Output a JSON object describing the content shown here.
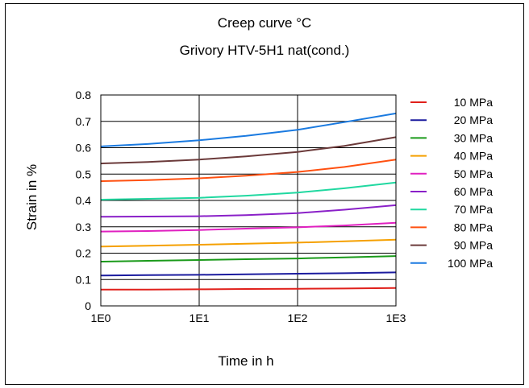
{
  "chart_data": {
    "type": "line",
    "title": "Creep curve °C",
    "subtitle": "Grivory HTV-5H1 nat(cond.)",
    "xlabel": "Time in h",
    "ylabel": "Strain in %",
    "x_scale": "log",
    "xlim": [
      1,
      1000
    ],
    "ylim": [
      0,
      0.8
    ],
    "x_tick_values": [
      1,
      10,
      100,
      1000
    ],
    "x_tick_labels": [
      "1E0",
      "1E1",
      "1E2",
      "1E3"
    ],
    "y_tick_values": [
      0,
      0.1,
      0.2,
      0.3,
      0.4,
      0.5,
      0.6,
      0.7,
      0.8
    ],
    "y_tick_labels": [
      "0",
      "0.1",
      "0.2",
      "0.3",
      "0.4",
      "0.5",
      "0.6",
      "0.7",
      "0.8"
    ],
    "grid": true,
    "legend_position": "right",
    "x": [
      1,
      3,
      10,
      30,
      100,
      300,
      1000
    ],
    "series": [
      {
        "name": "10 MPa",
        "color": "#e0201b",
        "values": [
          0.062,
          0.062,
          0.063,
          0.064,
          0.065,
          0.066,
          0.068
        ]
      },
      {
        "name": "20 MPa",
        "color": "#1b1b9e",
        "values": [
          0.115,
          0.117,
          0.118,
          0.12,
          0.122,
          0.124,
          0.127
        ]
      },
      {
        "name": "30 MPa",
        "color": "#1a9a1a",
        "values": [
          0.168,
          0.171,
          0.174,
          0.177,
          0.18,
          0.184,
          0.189
        ]
      },
      {
        "name": "40 MPa",
        "color": "#f5a000",
        "values": [
          0.225,
          0.228,
          0.232,
          0.236,
          0.24,
          0.245,
          0.251
        ]
      },
      {
        "name": "50 MPa",
        "color": "#e020c0",
        "values": [
          0.282,
          0.284,
          0.288,
          0.293,
          0.298,
          0.305,
          0.315
        ]
      },
      {
        "name": "60 MPa",
        "color": "#8a20c8",
        "values": [
          0.338,
          0.339,
          0.34,
          0.344,
          0.352,
          0.365,
          0.382
        ]
      },
      {
        "name": "70 MPa",
        "color": "#20d8a0",
        "values": [
          0.403,
          0.406,
          0.41,
          0.418,
          0.43,
          0.446,
          0.468
        ]
      },
      {
        "name": "80 MPa",
        "color": "#ff5010",
        "values": [
          0.473,
          0.477,
          0.484,
          0.494,
          0.508,
          0.527,
          0.555
        ]
      },
      {
        "name": "90 MPa",
        "color": "#6b3a3a",
        "values": [
          0.54,
          0.546,
          0.555,
          0.567,
          0.584,
          0.607,
          0.64
        ]
      },
      {
        "name": "100 MPa",
        "color": "#1a7ae0",
        "values": [
          0.605,
          0.614,
          0.628,
          0.645,
          0.668,
          0.697,
          0.73
        ]
      }
    ]
  }
}
